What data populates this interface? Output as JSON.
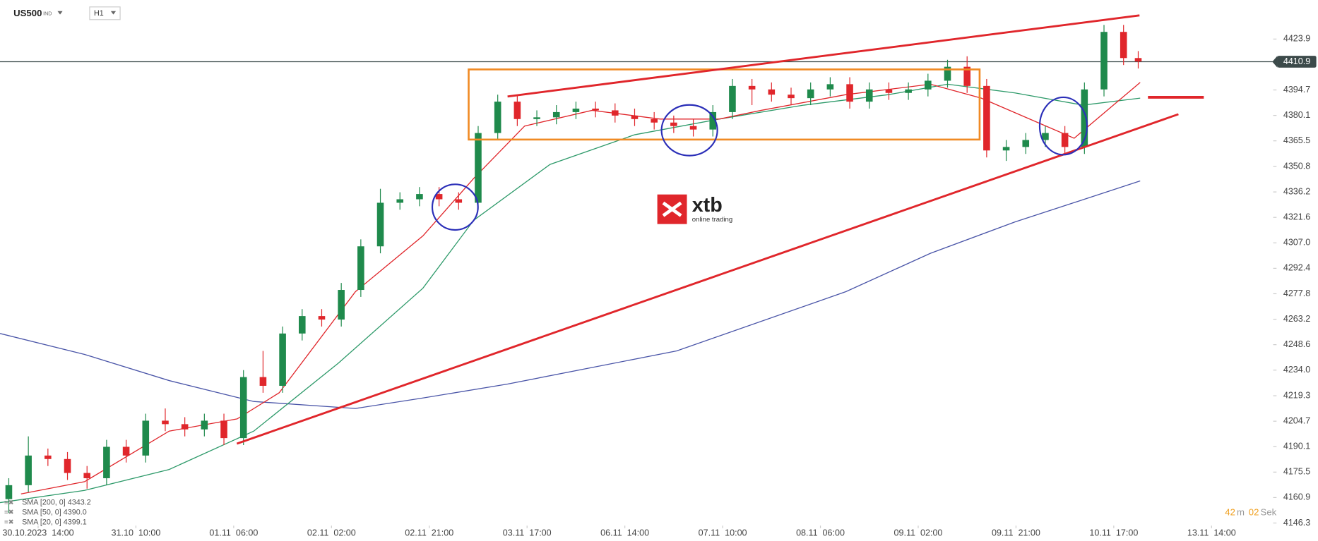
{
  "chart_data": {
    "type": "candlestick",
    "symbol": "US500",
    "symbol_type": "IND",
    "timeframe": "H1",
    "up_color": "#1f8a4c",
    "down_color": "#e0262b",
    "x": [
      -6,
      -2,
      2,
      6,
      10,
      14,
      18,
      22,
      26,
      30,
      34,
      38,
      42,
      46,
      50,
      54,
      58,
      62,
      66,
      70,
      74,
      78,
      82,
      86,
      90,
      94,
      98,
      102,
      106,
      110,
      114,
      118,
      122,
      126,
      130,
      134,
      138,
      142,
      146,
      150,
      154,
      158,
      162,
      166,
      170,
      174,
      178,
      182,
      186,
      190,
      194,
      198,
      202,
      206,
      210,
      214,
      218,
      222,
      225
    ],
    "open": [
      4160,
      4168,
      4185,
      4183,
      4175,
      4172,
      4190,
      4185,
      4205,
      4203,
      4200,
      4205,
      4195,
      4230,
      4225,
      4255,
      4265,
      4263,
      4280,
      4305,
      4330,
      4332,
      4335,
      4332,
      4330,
      4370,
      4388,
      4378,
      4379,
      4382,
      4384,
      4383,
      4380,
      4378,
      4376,
      4374,
      4372,
      4382,
      4397,
      4395,
      4392,
      4390,
      4395,
      4398,
      4388,
      4395,
      4393,
      4395,
      4400,
      4408,
      4397,
      4360,
      4362,
      4366,
      4370,
      4362,
      4395,
      4428,
      4413
    ],
    "high": [
      4172,
      4196,
      4189,
      4187,
      4179,
      4194,
      4194,
      4209,
      4212,
      4207,
      4209,
      4209,
      4234,
      4245,
      4259,
      4269,
      4269,
      4284,
      4309,
      4338,
      4336,
      4339,
      4339,
      4336,
      4374,
      4392,
      4392,
      4383,
      4386,
      4388,
      4388,
      4387,
      4384,
      4382,
      4380,
      4378,
      4386,
      4401,
      4401,
      4399,
      4396,
      4399,
      4402,
      4402,
      4399,
      4399,
      4399,
      4404,
      4412,
      4414,
      4401,
      4366,
      4370,
      4374,
      4374,
      4399,
      4432,
      4432,
      4417
    ],
    "low": [
      4152,
      4164,
      4179,
      4171,
      4166,
      4168,
      4181,
      4181,
      4199,
      4196,
      4196,
      4191,
      4191,
      4221,
      4221,
      4251,
      4259,
      4259,
      4276,
      4301,
      4326,
      4328,
      4328,
      4326,
      4326,
      4366,
      4374,
      4374,
      4375,
      4378,
      4379,
      4376,
      4374,
      4372,
      4370,
      4368,
      4368,
      4378,
      4386,
      4388,
      4386,
      4386,
      4391,
      4384,
      4384,
      4389,
      4389,
      4391,
      4396,
      4393,
      4356,
      4354,
      4358,
      4362,
      4358,
      4358,
      4391,
      4409,
      4407
    ],
    "close": [
      4168,
      4185,
      4183,
      4175,
      4172,
      4190,
      4185,
      4205,
      4203,
      4200,
      4205,
      4195,
      4230,
      4225,
      4255,
      4265,
      4263,
      4280,
      4305,
      4330,
      4332,
      4335,
      4332,
      4330,
      4370,
      4388,
      4378,
      4379,
      4382,
      4384,
      4383,
      4380,
      4378,
      4376,
      4374,
      4372,
      4382,
      4397,
      4395,
      4392,
      4390,
      4395,
      4398,
      4388,
      4395,
      4393,
      4395,
      4400,
      4408,
      4397,
      4360,
      4362,
      4366,
      4370,
      4362,
      4395,
      4428,
      4413,
      4411
    ],
    "overlays": [
      {
        "name": "SMA [200, 0] 4343.2",
        "color": "#4a55a8",
        "x": [
          -7.8,
          9.5,
          26.8,
          44.1,
          64.9,
          78.7,
          96,
          130.6,
          165.2,
          182.5,
          199.8,
          225.4
        ],
        "values": [
          4255,
          4243,
          4228,
          4216,
          4212,
          4218,
          4226,
          4245,
          4279,
          4301,
          4319,
          4342.5
        ]
      },
      {
        "name": "SMA [50, 0] 4390.0",
        "color": "#2e9a6a",
        "x": [
          -7.8,
          9.5,
          26.8,
          44.1,
          61.4,
          78.7,
          89.1,
          104.7,
          122,
          139.3,
          156.6,
          173.9,
          186,
          199.8,
          213.7,
          225.4
        ],
        "values": [
          4158,
          4165,
          4177,
          4199,
          4238,
          4281,
          4320,
          4352,
          4369,
          4378,
          4386,
          4392,
          4398,
          4393,
          4386,
          4390
        ]
      },
      {
        "name": "SMA [20, 0] 4399.1",
        "color": "#e0262b",
        "x": [
          -3.5,
          9.5,
          26.8,
          40.7,
          49.3,
          64.9,
          78.7,
          89.1,
          99.5,
          113.3,
          127.2,
          139.3,
          147.9,
          165.2,
          182.5,
          192.9,
          211.9,
          225.4
        ],
        "values": [
          4163,
          4170,
          4199,
          4206,
          4221,
          4279,
          4311,
          4344,
          4374,
          4383,
          4378,
          4378,
          4383,
          4392,
          4398,
          4390,
          4367,
          4399
        ]
      }
    ],
    "current_price": 4410.9,
    "xlim": [
      -7.8,
      252.6
    ],
    "xticks": [
      {
        "value": 0,
        "label": "30.10.2023  14:00"
      },
      {
        "value": 20,
        "label": "31.10  10:00"
      },
      {
        "value": 40,
        "label": "01.11  06:00"
      },
      {
        "value": 60,
        "label": "02.11  02:00"
      },
      {
        "value": 80,
        "label": "02.11  21:00"
      },
      {
        "value": 100,
        "label": "03.11  17:00"
      },
      {
        "value": 120,
        "label": "06.11  14:00"
      },
      {
        "value": 140,
        "label": "07.11  10:00"
      },
      {
        "value": 160,
        "label": "08.11  06:00"
      },
      {
        "value": 180,
        "label": "09.11  02:00"
      },
      {
        "value": 200,
        "label": "09.11  21:00"
      },
      {
        "value": 220,
        "label": "10.11  17:00"
      },
      {
        "value": 240,
        "label": "13.11  14:00"
      }
    ],
    "ylim": [
      4144.8,
      4446.2
    ],
    "yticks": [
      4423.9,
      4394.7,
      4380.1,
      4365.5,
      4350.8,
      4336.2,
      4321.6,
      {
        "value": 4307,
        "label": "4307.0"
      },
      4292.4,
      4277.8,
      4263.2,
      4248.6,
      {
        "value": 4234,
        "label": "4234.0"
      },
      4219.3,
      4204.7,
      4190.1,
      4175.5,
      4160.9,
      4146.3
    ],
    "timer": {
      "minutes": "42",
      "minutes_unit": "m",
      "seconds": "02",
      "seconds_unit": "Sek"
    },
    "logo": {
      "name": "xtb",
      "tagline": "online trading"
    }
  }
}
